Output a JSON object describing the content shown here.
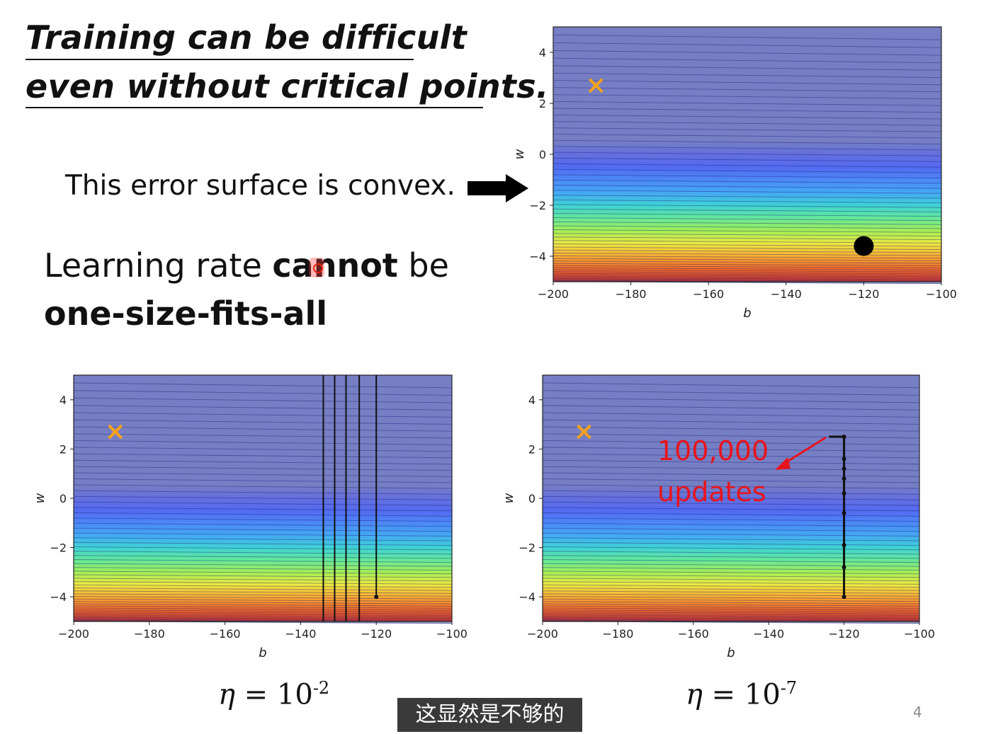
{
  "slide": {
    "title_line1": "Training can be difficult",
    "title_line2": "even without critical points.",
    "convex_text": "This error surface is convex.",
    "lr_prefix": "Learning rate ",
    "lr_bold": "cannot",
    "lr_suffix": " be",
    "lr_line2": "one-size-fits-all",
    "eta_left": {
      "symbol": "η",
      "eq": " = 10",
      "exp": "-2"
    },
    "eta_right": {
      "symbol": "η",
      "eq": " = 10",
      "exp": "-7"
    },
    "subtitle": "这显然是不够的",
    "page_number": "4"
  },
  "colors": {
    "marker_x": "#f5a21c",
    "trajectory": "#111111",
    "annotation": "#e8141c"
  },
  "icons": [
    "right-arrow-icon",
    "target-x-icon",
    "start-point-icon"
  ],
  "chart_data": [
    {
      "type": "heatmap",
      "name": "error-surface",
      "xlabel": "b",
      "ylabel": "w",
      "xlim": [
        -200,
        -100
      ],
      "ylim": [
        -5,
        5
      ],
      "xticks": [
        -200,
        -180,
        -160,
        -140,
        -120,
        -100
      ],
      "yticks": [
        -4,
        -2,
        0,
        2,
        4
      ],
      "target": {
        "b": -189,
        "w": 2.7
      },
      "start": {
        "b": -120,
        "w": -3.6
      }
    },
    {
      "type": "line",
      "name": "gd-large-lr",
      "xlabel": "b",
      "ylabel": "w",
      "xlim": [
        -200,
        -100
      ],
      "ylim": [
        -5,
        5
      ],
      "xticks": [
        -200,
        -180,
        -160,
        -140,
        -120,
        -100
      ],
      "yticks": [
        -4,
        -2,
        0,
        2,
        4
      ],
      "target": {
        "b": -189,
        "w": 2.7
      },
      "start": {
        "b": -120,
        "w": -4
      },
      "oscillation_b": [
        -134,
        -131,
        -128,
        -124.5,
        -120
      ]
    },
    {
      "type": "line",
      "name": "gd-small-lr",
      "xlabel": "b",
      "ylabel": "w",
      "xlim": [
        -200,
        -100
      ],
      "ylim": [
        -5,
        5
      ],
      "xticks": [
        -200,
        -180,
        -160,
        -140,
        -120,
        -100
      ],
      "yticks": [
        -4,
        -2,
        0,
        2,
        4
      ],
      "target": {
        "b": -189,
        "w": 2.7
      },
      "start": {
        "b": -120,
        "w": -4
      },
      "path": [
        [
          -120,
          -4
        ],
        [
          -120,
          -2.8
        ],
        [
          -120,
          -1.9
        ],
        [
          -120,
          -0.6
        ],
        [
          -120,
          0.2
        ],
        [
          -120,
          0.8
        ],
        [
          -120,
          1.2
        ],
        [
          -120,
          1.6
        ],
        [
          -120,
          2.5
        ],
        [
          -124,
          2.5
        ]
      ],
      "annotation": {
        "line1": "100,000",
        "line2": "updates"
      }
    }
  ]
}
